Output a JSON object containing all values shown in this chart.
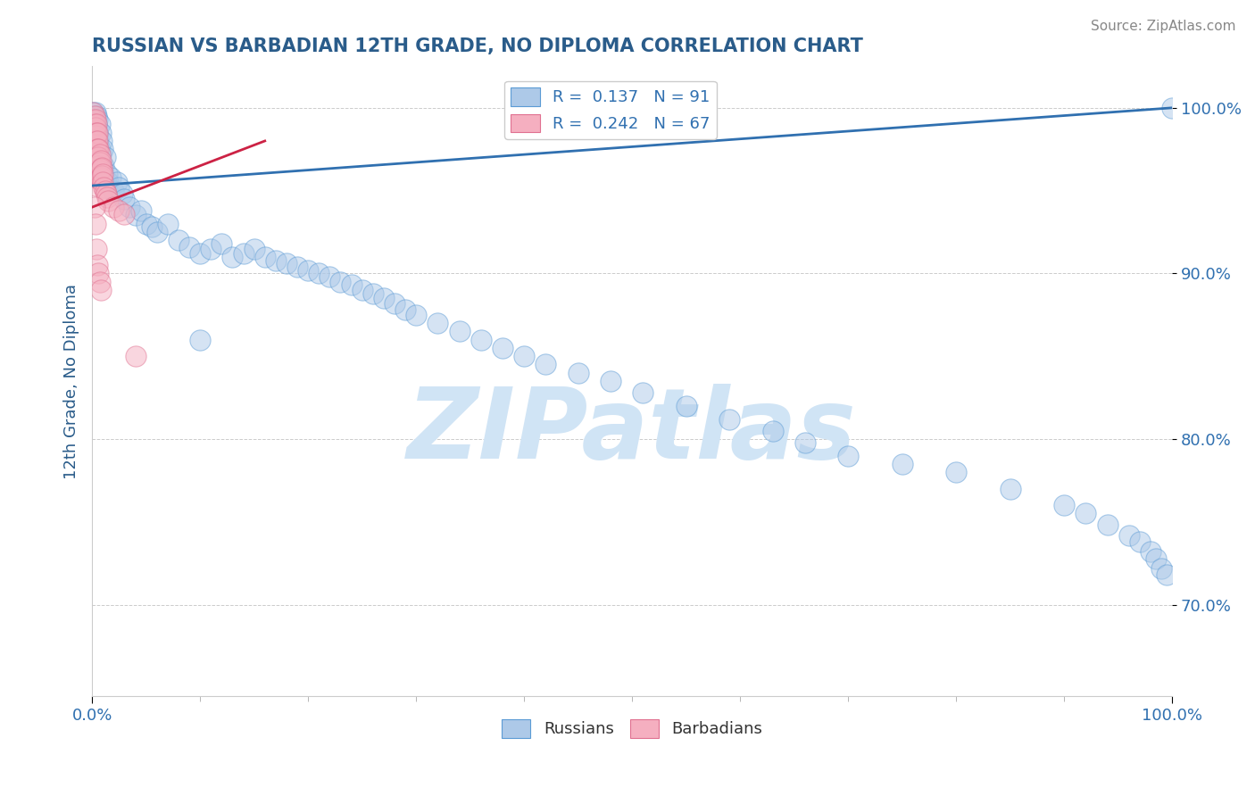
{
  "title": "RUSSIAN VS BARBADIAN 12TH GRADE, NO DIPLOMA CORRELATION CHART",
  "source_text": "Source: ZipAtlas.com",
  "ylabel": "12th Grade, No Diploma",
  "x_tick_labels_bottom": [
    "0.0%",
    "100.0%"
  ],
  "y_tick_labels": [
    "70.0%",
    "80.0%",
    "90.0%",
    "100.0%"
  ],
  "y_tick_positions": [
    0.7,
    0.8,
    0.9,
    1.0
  ],
  "x_lim": [
    0.0,
    1.0
  ],
  "y_lim": [
    0.645,
    1.025
  ],
  "russian_color": "#adc9e8",
  "barbadian_color": "#f5afc0",
  "russian_edge_color": "#5b9bd5",
  "barbadian_edge_color": "#e07090",
  "russian_line_color": "#3070b0",
  "barbadian_line_color": "#cc2244",
  "legend_russian_label": "R =  0.137   N = 91",
  "legend_barbadian_label": "R =  0.242   N = 67",
  "legend_bottom_russian": "Russians",
  "legend_bottom_barbadian": "Barbadians",
  "watermark_text": "ZIPatlas",
  "watermark_color": "#d0e4f5",
  "title_color": "#2a5c8a",
  "axis_label_color": "#2a5c8a",
  "tick_label_color": "#3070b0",
  "grid_color": "#cccccc",
  "background_color": "#ffffff",
  "russian_trend_x0": 0.0,
  "russian_trend_x1": 1.0,
  "russian_trend_y0": 0.953,
  "russian_trend_y1": 1.0,
  "barbadian_trend_x0": 0.0,
  "barbadian_trend_x1": 0.16,
  "barbadian_trend_y0": 0.94,
  "barbadian_trend_y1": 0.98,
  "russian_x": [
    0.001,
    0.002,
    0.002,
    0.003,
    0.003,
    0.003,
    0.004,
    0.004,
    0.004,
    0.005,
    0.005,
    0.005,
    0.006,
    0.006,
    0.007,
    0.007,
    0.008,
    0.008,
    0.009,
    0.009,
    0.01,
    0.01,
    0.011,
    0.012,
    0.013,
    0.014,
    0.015,
    0.017,
    0.02,
    0.023,
    0.025,
    0.028,
    0.03,
    0.035,
    0.04,
    0.045,
    0.05,
    0.055,
    0.06,
    0.07,
    0.08,
    0.09,
    0.1,
    0.11,
    0.12,
    0.13,
    0.14,
    0.15,
    0.16,
    0.17,
    0.18,
    0.19,
    0.2,
    0.21,
    0.22,
    0.23,
    0.24,
    0.25,
    0.26,
    0.27,
    0.28,
    0.29,
    0.3,
    0.32,
    0.34,
    0.36,
    0.38,
    0.4,
    0.42,
    0.45,
    0.48,
    0.51,
    0.55,
    0.59,
    0.63,
    0.66,
    0.7,
    0.75,
    0.8,
    0.85,
    0.9,
    0.92,
    0.94,
    0.96,
    0.97,
    0.98,
    0.985,
    0.99,
    0.995,
    1.0,
    0.1
  ],
  "russian_y": [
    0.997,
    0.993,
    0.98,
    0.985,
    0.997,
    0.975,
    0.99,
    0.98,
    0.995,
    0.988,
    0.975,
    0.993,
    0.983,
    0.978,
    0.99,
    0.975,
    0.985,
    0.972,
    0.98,
    0.965,
    0.975,
    0.96,
    0.965,
    0.97,
    0.955,
    0.96,
    0.955,
    0.958,
    0.95,
    0.955,
    0.952,
    0.948,
    0.945,
    0.94,
    0.935,
    0.938,
    0.93,
    0.928,
    0.925,
    0.93,
    0.92,
    0.916,
    0.912,
    0.915,
    0.918,
    0.91,
    0.912,
    0.915,
    0.91,
    0.908,
    0.906,
    0.904,
    0.902,
    0.9,
    0.898,
    0.895,
    0.893,
    0.89,
    0.888,
    0.885,
    0.882,
    0.878,
    0.875,
    0.87,
    0.865,
    0.86,
    0.855,
    0.85,
    0.845,
    0.84,
    0.835,
    0.828,
    0.82,
    0.812,
    0.805,
    0.798,
    0.79,
    0.785,
    0.78,
    0.77,
    0.76,
    0.755,
    0.748,
    0.742,
    0.738,
    0.732,
    0.728,
    0.722,
    0.718,
    1.0,
    0.86
  ],
  "barbadian_x": [
    0.001,
    0.001,
    0.001,
    0.001,
    0.001,
    0.001,
    0.002,
    0.002,
    0.002,
    0.002,
    0.002,
    0.002,
    0.002,
    0.002,
    0.003,
    0.003,
    0.003,
    0.003,
    0.003,
    0.003,
    0.003,
    0.003,
    0.003,
    0.004,
    0.004,
    0.004,
    0.004,
    0.004,
    0.004,
    0.004,
    0.005,
    0.005,
    0.005,
    0.005,
    0.005,
    0.005,
    0.006,
    0.006,
    0.006,
    0.006,
    0.007,
    0.007,
    0.007,
    0.007,
    0.008,
    0.008,
    0.008,
    0.009,
    0.009,
    0.01,
    0.01,
    0.011,
    0.012,
    0.013,
    0.014,
    0.015,
    0.02,
    0.025,
    0.03,
    0.04,
    0.002,
    0.003,
    0.004,
    0.005,
    0.006,
    0.007,
    0.008
  ],
  "barbadian_y": [
    0.997,
    0.993,
    0.989,
    0.985,
    0.981,
    0.977,
    0.995,
    0.99,
    0.985,
    0.98,
    0.975,
    0.97,
    0.965,
    0.96,
    0.993,
    0.988,
    0.983,
    0.978,
    0.973,
    0.968,
    0.963,
    0.958,
    0.953,
    0.99,
    0.985,
    0.98,
    0.975,
    0.97,
    0.965,
    0.96,
    0.985,
    0.98,
    0.975,
    0.97,
    0.965,
    0.96,
    0.975,
    0.97,
    0.965,
    0.96,
    0.972,
    0.967,
    0.962,
    0.957,
    0.968,
    0.963,
    0.958,
    0.964,
    0.959,
    0.96,
    0.955,
    0.952,
    0.95,
    0.948,
    0.946,
    0.944,
    0.94,
    0.938,
    0.936,
    0.85,
    0.94,
    0.93,
    0.915,
    0.905,
    0.9,
    0.895,
    0.89
  ]
}
